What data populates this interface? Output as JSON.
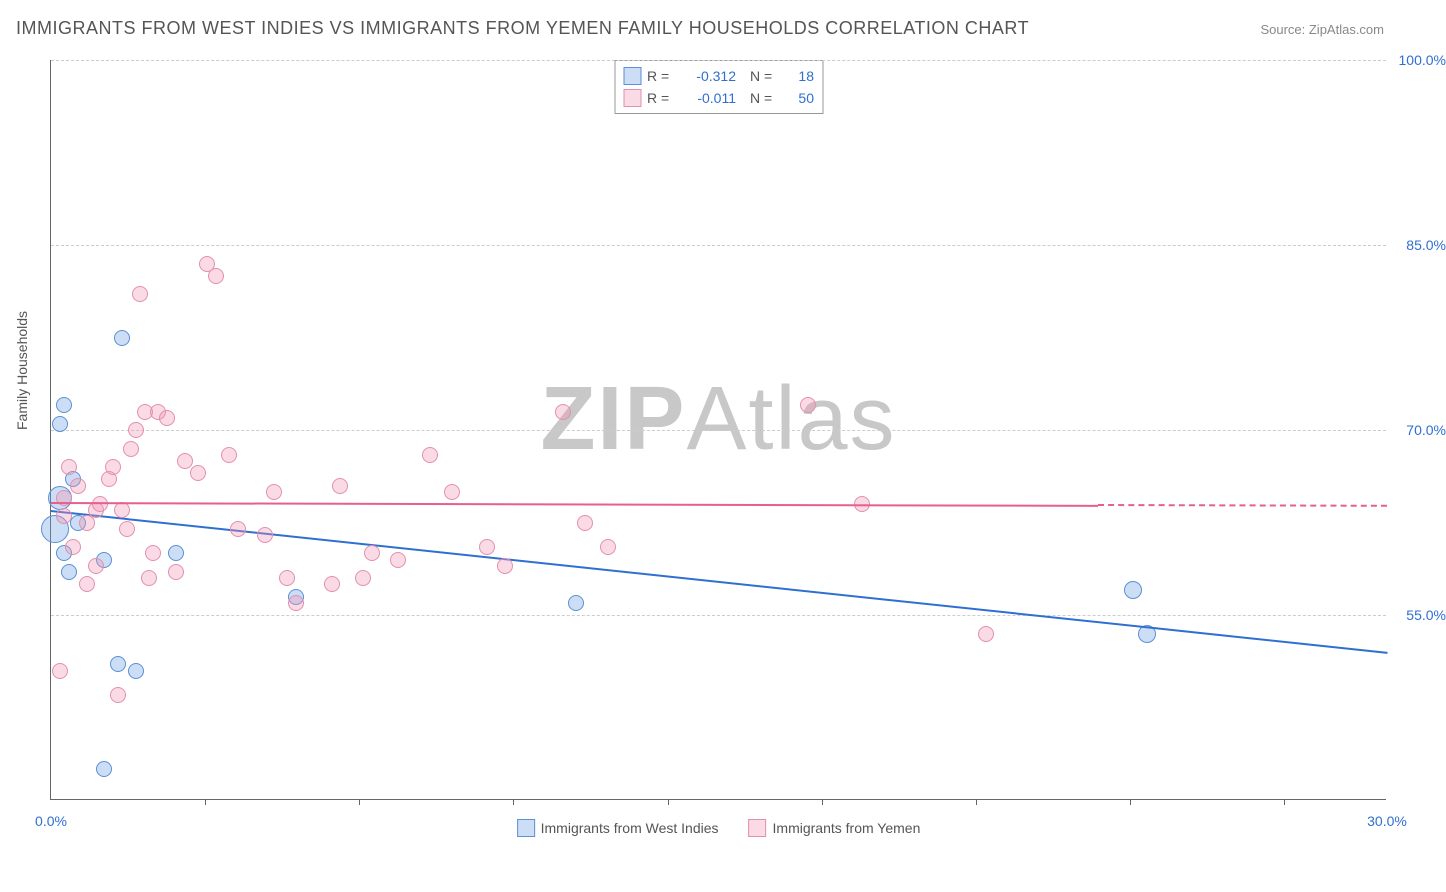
{
  "title": "IMMIGRANTS FROM WEST INDIES VS IMMIGRANTS FROM YEMEN FAMILY HOUSEHOLDS CORRELATION CHART",
  "source_label": "Source: ",
  "source_name": "ZipAtlas.com",
  "watermark_bold": "ZIP",
  "watermark_light": "Atlas",
  "chart": {
    "type": "scatter-correlation",
    "xlim": [
      0.0,
      30.0
    ],
    "ylim": [
      40.0,
      100.0
    ],
    "x_ticks_major": [
      0.0,
      30.0
    ],
    "x_ticks_minor": [
      3.46,
      6.92,
      10.38,
      13.85,
      17.31,
      20.77,
      24.23,
      27.69
    ],
    "y_ticks": [
      55.0,
      70.0,
      85.0,
      100.0
    ],
    "x_tick_format_suffix": "%",
    "y_tick_format_suffix": "%",
    "x_label_color": "#2f6fd0",
    "y_label_color": "#2f6fd0",
    "grid_color": "#cccccc",
    "axis_color": "#666666",
    "background_color": "#ffffff",
    "y_axis_title": "Family Households",
    "marker_radius": 8,
    "marker_stroke_width": 1.5,
    "line_width": 2,
    "series": [
      {
        "name": "Immigrants from West Indies",
        "color_fill": "rgba(110,160,225,0.35)",
        "color_stroke": "#5b8fd6",
        "line_color": "#2f6fd0",
        "r": -0.312,
        "n": 18,
        "regression": {
          "x1": 0.0,
          "y1": 63.5,
          "x2": 30.0,
          "y2": 52.0,
          "solid_until_x": 30.0
        },
        "points": [
          {
            "x": 0.3,
            "y": 72.0,
            "r": 8
          },
          {
            "x": 0.2,
            "y": 70.5,
            "r": 8
          },
          {
            "x": 0.2,
            "y": 64.5,
            "r": 12
          },
          {
            "x": 0.1,
            "y": 62.0,
            "r": 14
          },
          {
            "x": 1.6,
            "y": 77.5,
            "r": 8
          },
          {
            "x": 1.2,
            "y": 59.5,
            "r": 8
          },
          {
            "x": 1.5,
            "y": 51.0,
            "r": 8
          },
          {
            "x": 1.9,
            "y": 50.5,
            "r": 8
          },
          {
            "x": 2.8,
            "y": 60.0,
            "r": 8
          },
          {
            "x": 1.2,
            "y": 42.5,
            "r": 8
          },
          {
            "x": 5.5,
            "y": 56.5,
            "r": 8
          },
          {
            "x": 11.8,
            "y": 56.0,
            "r": 8
          },
          {
            "x": 24.3,
            "y": 57.0,
            "r": 9
          },
          {
            "x": 24.6,
            "y": 53.5,
            "r": 9
          },
          {
            "x": 0.3,
            "y": 60.0,
            "r": 8
          },
          {
            "x": 0.5,
            "y": 66.0,
            "r": 8
          },
          {
            "x": 0.4,
            "y": 58.5,
            "r": 8
          },
          {
            "x": 0.6,
            "y": 62.5,
            "r": 8
          }
        ]
      },
      {
        "name": "Immigrants from Yemen",
        "color_fill": "rgba(240,150,180,0.35)",
        "color_stroke": "#e38fb0",
        "line_color": "#e75f8f",
        "r": -0.011,
        "n": 50,
        "regression": {
          "x1": 0.0,
          "y1": 64.2,
          "x2": 30.0,
          "y2": 63.9,
          "solid_until_x": 23.5
        },
        "points": [
          {
            "x": 0.2,
            "y": 50.5
          },
          {
            "x": 0.3,
            "y": 63.0
          },
          {
            "x": 0.3,
            "y": 64.5
          },
          {
            "x": 0.4,
            "y": 67.0
          },
          {
            "x": 0.5,
            "y": 60.5
          },
          {
            "x": 0.6,
            "y": 65.5
          },
          {
            "x": 0.8,
            "y": 62.5
          },
          {
            "x": 0.8,
            "y": 57.5
          },
          {
            "x": 1.0,
            "y": 59.0
          },
          {
            "x": 1.0,
            "y": 63.5
          },
          {
            "x": 1.1,
            "y": 64.0
          },
          {
            "x": 1.3,
            "y": 66.0
          },
          {
            "x": 1.4,
            "y": 67.0
          },
          {
            "x": 1.5,
            "y": 48.5
          },
          {
            "x": 1.6,
            "y": 63.5
          },
          {
            "x": 1.7,
            "y": 62.0
          },
          {
            "x": 1.8,
            "y": 68.5
          },
          {
            "x": 1.9,
            "y": 70.0
          },
          {
            "x": 2.0,
            "y": 81.0
          },
          {
            "x": 2.1,
            "y": 71.5
          },
          {
            "x": 2.2,
            "y": 58.0
          },
          {
            "x": 2.3,
            "y": 60.0
          },
          {
            "x": 2.4,
            "y": 71.5
          },
          {
            "x": 2.6,
            "y": 71.0
          },
          {
            "x": 2.8,
            "y": 58.5
          },
          {
            "x": 3.0,
            "y": 67.5
          },
          {
            "x": 3.3,
            "y": 66.5
          },
          {
            "x": 3.5,
            "y": 83.5
          },
          {
            "x": 3.7,
            "y": 82.5
          },
          {
            "x": 4.0,
            "y": 68.0
          },
          {
            "x": 4.2,
            "y": 62.0
          },
          {
            "x": 4.8,
            "y": 61.5
          },
          {
            "x": 5.0,
            "y": 65.0
          },
          {
            "x": 5.3,
            "y": 58.0
          },
          {
            "x": 5.5,
            "y": 56.0
          },
          {
            "x": 6.3,
            "y": 57.5
          },
          {
            "x": 6.5,
            "y": 65.5
          },
          {
            "x": 7.0,
            "y": 58.0
          },
          {
            "x": 7.2,
            "y": 60.0
          },
          {
            "x": 7.8,
            "y": 59.5
          },
          {
            "x": 8.5,
            "y": 68.0
          },
          {
            "x": 9.0,
            "y": 65.0
          },
          {
            "x": 9.8,
            "y": 60.5
          },
          {
            "x": 10.2,
            "y": 59.0
          },
          {
            "x": 11.5,
            "y": 71.5
          },
          {
            "x": 12.0,
            "y": 62.5
          },
          {
            "x": 12.5,
            "y": 60.5
          },
          {
            "x": 17.0,
            "y": 72.0
          },
          {
            "x": 18.2,
            "y": 64.0
          },
          {
            "x": 21.0,
            "y": 53.5
          }
        ]
      }
    ],
    "stats_box_labels": {
      "r": "R =",
      "n": "N ="
    }
  }
}
